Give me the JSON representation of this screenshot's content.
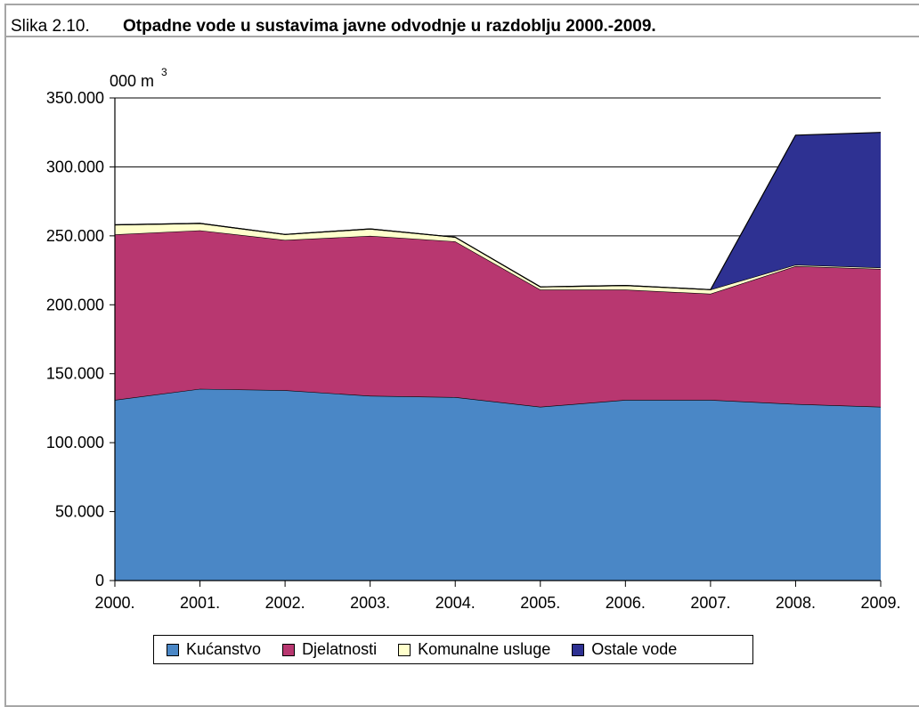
{
  "header": {
    "prefix": "Slika 2.10.",
    "title": "Otpadne vode u sustavima javne odvodnje u razdoblju 2000.-2009."
  },
  "chart_data": {
    "type": "area",
    "stacked": true,
    "unit_label": "000 m",
    "unit_superscript": "3",
    "categories": [
      "2000.",
      "2001.",
      "2002.",
      "2003.",
      "2004.",
      "2005.",
      "2006.",
      "2007.",
      "2008.",
      "2009."
    ],
    "ylim": [
      0,
      350000
    ],
    "yticks": [
      0,
      50000,
      100000,
      150000,
      200000,
      250000,
      300000,
      350000
    ],
    "ytick_labels": [
      "0",
      "50.000",
      "100.000",
      "150.000",
      "200.000",
      "250.000",
      "300.000",
      "350.000"
    ],
    "gridlines": [
      250000,
      300000,
      350000
    ],
    "legend_position": "bottom",
    "series": [
      {
        "name": "Kućanstvo",
        "color": "#4A87C6",
        "values": [
          131000,
          139000,
          138000,
          134000,
          133000,
          126000,
          131000,
          131000,
          128000,
          126000
        ]
      },
      {
        "name": "Djelatnosti",
        "color": "#B83770",
        "values": [
          120000,
          115000,
          109000,
          116000,
          113000,
          85000,
          80000,
          77000,
          100000,
          100000
        ]
      },
      {
        "name": "Komunalne usluge",
        "color": "#FFFFCC",
        "values": [
          7000,
          5000,
          4000,
          5000,
          3000,
          2000,
          3000,
          3000,
          1000,
          1000
        ]
      },
      {
        "name": "Ostale vode",
        "color": "#2E3192",
        "values": [
          0,
          0,
          0,
          0,
          0,
          0,
          0,
          0,
          94000,
          98000
        ]
      }
    ]
  }
}
